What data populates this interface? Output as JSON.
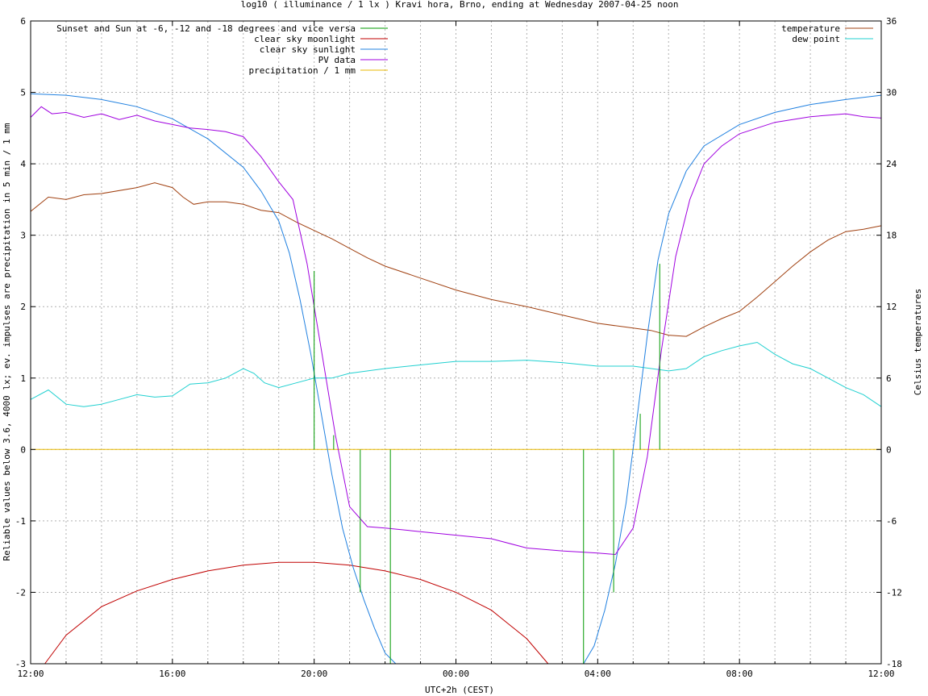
{
  "chart_data": {
    "type": "line",
    "title": "log10 ( illuminance / 1 lx ) Kravi hora, Brno, ending at Wednesday 2007-04-25 noon",
    "xlabel": "UTC+2h (CEST)",
    "ylabel": "Reliable values below 3.6, 4000 lx; ev. impulses are precipitation in 5 min / 1 mm",
    "y2label": "Celsius temperatures",
    "xlim": [
      0,
      24
    ],
    "ylim": [
      -3,
      6
    ],
    "y2lim": [
      -18,
      36
    ],
    "x_tick_labels": [
      "12:00",
      "16:00",
      "20:00",
      "00:00",
      "04:00",
      "08:00",
      "12:00"
    ],
    "y_tick_labels": [
      "-3",
      "-2",
      "-1",
      "0",
      "1",
      "2",
      "3",
      "4",
      "5",
      "6"
    ],
    "y2_tick_labels": [
      "-18",
      "-12",
      "-6",
      "0",
      "6",
      "12",
      "18",
      "24",
      "30",
      "36"
    ],
    "grid": true,
    "legend_left": [
      {
        "name": "Sunset and Sun at -6, -12 and -18 degrees and vice versa",
        "color": "#009900"
      },
      {
        "name": "clear sky moonlight",
        "color": "#c00000"
      },
      {
        "name": "clear sky sunlight",
        "color": "#2080e0"
      },
      {
        "name": "PV data",
        "color": "#a000e0"
      },
      {
        "name": "precipitation / 1 mm",
        "color": "#e8b800"
      }
    ],
    "legend_right": [
      {
        "name": "temperature",
        "color": "#a04010"
      },
      {
        "name": "dew point",
        "color": "#20d0d0"
      }
    ],
    "impulses": [
      {
        "x": 8.0,
        "y": 2.5
      },
      {
        "x": 8.55,
        "y": 0.2
      },
      {
        "x": 9.3,
        "y": -2.0
      },
      {
        "x": 10.15,
        "y": -3.0
      },
      {
        "x": 15.6,
        "y": -3.0
      },
      {
        "x": 16.45,
        "y": -2.0
      },
      {
        "x": 17.2,
        "y": 0.5
      },
      {
        "x": 17.75,
        "y": 2.6
      }
    ],
    "series": [
      {
        "name": "clear sky sunlight",
        "x": [
          0,
          1,
          2,
          3,
          4,
          5,
          6,
          6.5,
          7,
          7.3,
          7.6,
          7.9,
          8.2,
          8.5,
          8.8,
          9.1,
          9.4,
          9.7,
          10,
          10.3,
          15.6,
          15.9,
          16.2,
          16.5,
          16.8,
          17.1,
          17.4,
          17.7,
          18,
          18.5,
          19,
          20,
          21,
          22,
          23,
          24
        ],
        "y": [
          4.98,
          4.96,
          4.9,
          4.8,
          4.63,
          4.35,
          3.95,
          3.62,
          3.2,
          2.75,
          2.1,
          1.35,
          0.5,
          -0.35,
          -1.1,
          -1.65,
          -2.1,
          -2.5,
          -2.85,
          -3.0,
          -3.0,
          -2.75,
          -2.25,
          -1.6,
          -0.75,
          0.4,
          1.6,
          2.65,
          3.3,
          3.9,
          4.25,
          4.55,
          4.72,
          4.83,
          4.9,
          4.96
        ]
      },
      {
        "name": "PV data",
        "x": [
          0,
          0.3,
          0.6,
          1,
          1.5,
          2,
          2.5,
          3,
          3.5,
          4,
          4.5,
          5,
          5.5,
          6,
          6.5,
          7,
          7.4,
          7.8,
          8.2,
          8.6,
          9,
          9.5,
          10,
          11,
          12,
          13,
          14,
          15,
          16,
          16.5,
          17,
          17.4,
          17.8,
          18.2,
          18.6,
          19,
          19.5,
          20,
          20.5,
          21,
          21.5,
          22,
          22.5,
          23,
          23.5,
          24
        ],
        "y": [
          4.65,
          4.8,
          4.7,
          4.72,
          4.65,
          4.7,
          4.62,
          4.68,
          4.6,
          4.55,
          4.5,
          4.48,
          4.45,
          4.38,
          4.1,
          3.75,
          3.5,
          2.6,
          1.4,
          0.2,
          -0.8,
          -1.08,
          -1.1,
          -1.15,
          -1.2,
          -1.25,
          -1.38,
          -1.42,
          -1.45,
          -1.47,
          -1.1,
          -0.1,
          1.4,
          2.7,
          3.5,
          4.0,
          4.25,
          4.42,
          4.5,
          4.58,
          4.62,
          4.66,
          4.68,
          4.7,
          4.66,
          4.64
        ]
      },
      {
        "name": "clear sky moonlight",
        "x": [
          0.4,
          1,
          2,
          3,
          4,
          5,
          6,
          7,
          8,
          9,
          10,
          11,
          12,
          13,
          14,
          14.6
        ],
        "y": [
          -3.0,
          -2.6,
          -2.2,
          -1.98,
          -1.82,
          -1.7,
          -1.62,
          -1.58,
          -1.58,
          -1.62,
          -1.7,
          -1.82,
          -2.0,
          -2.25,
          -2.65,
          -3.0
        ]
      },
      {
        "name": "precipitation / 1 mm",
        "x": [
          0,
          24
        ],
        "y": [
          0,
          0
        ]
      },
      {
        "name": "temperature",
        "axis": "y2",
        "x": [
          0,
          0.5,
          1,
          1.5,
          2,
          3,
          3.5,
          4,
          4.3,
          4.6,
          5,
          5.5,
          6,
          6.5,
          7,
          7.5,
          8,
          8.5,
          9,
          9.5,
          10,
          11,
          12,
          13,
          14,
          15,
          16,
          17,
          17.5,
          18,
          18.5,
          19,
          19.5,
          20,
          20.5,
          21,
          21.5,
          22,
          22.5,
          23,
          23.5,
          24
        ],
        "y": [
          20,
          21.2,
          21.0,
          21.4,
          21.5,
          22.0,
          22.4,
          22.0,
          21.2,
          20.6,
          20.8,
          20.8,
          20.6,
          20.1,
          19.9,
          19.1,
          18.4,
          17.7,
          16.9,
          16.1,
          15.4,
          14.4,
          13.4,
          12.6,
          12.0,
          11.3,
          10.6,
          10.2,
          10.0,
          9.6,
          9.5,
          10.3,
          11.0,
          11.6,
          12.8,
          14.1,
          15.4,
          16.6,
          17.6,
          18.3,
          18.5,
          18.8
        ]
      },
      {
        "name": "dew point",
        "axis": "y2",
        "x": [
          0,
          0.5,
          1,
          1.5,
          2,
          2.5,
          3,
          3.5,
          4,
          4.5,
          5,
          5.5,
          6,
          6.3,
          6.6,
          7,
          7.5,
          8,
          8.5,
          9,
          10,
          11,
          12,
          13,
          14,
          15,
          16,
          17,
          18,
          18.5,
          19,
          19.5,
          20,
          20.5,
          21,
          21.5,
          22,
          22.5,
          23,
          23.5,
          24
        ],
        "y": [
          4.2,
          5.0,
          3.8,
          3.6,
          3.8,
          4.2,
          4.6,
          4.4,
          4.5,
          5.5,
          5.6,
          6.0,
          6.8,
          6.4,
          5.6,
          5.2,
          5.6,
          6.0,
          6.0,
          6.4,
          6.8,
          7.1,
          7.4,
          7.4,
          7.5,
          7.3,
          7.0,
          7.0,
          6.6,
          6.8,
          7.8,
          8.3,
          8.7,
          9.0,
          8.0,
          7.2,
          6.8,
          6.0,
          5.2,
          4.6,
          3.6
        ]
      }
    ]
  }
}
